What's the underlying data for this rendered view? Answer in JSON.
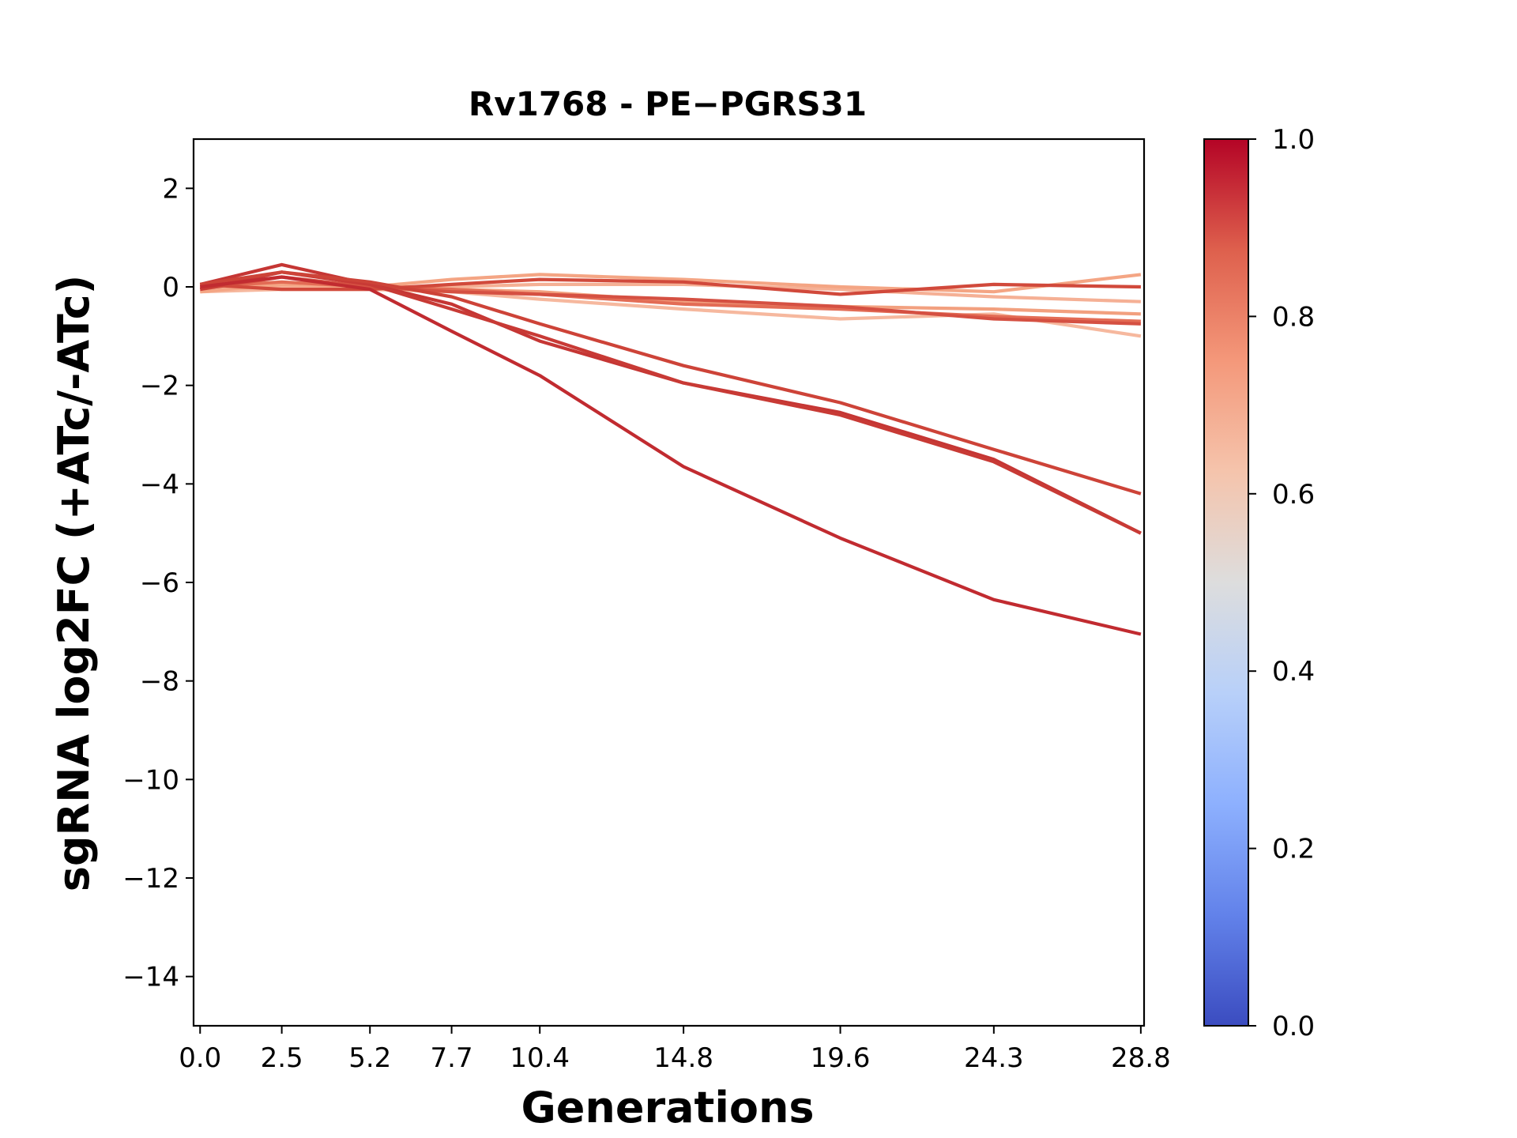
{
  "chart_data": {
    "type": "line",
    "title": "Rv1768 - PE−PGRS31",
    "xlabel": "Generations",
    "ylabel": "sgRNA log2FC (+ATc/-ATc)",
    "x": [
      0.0,
      2.5,
      5.2,
      7.7,
      10.4,
      14.8,
      19.6,
      24.3,
      28.8
    ],
    "x_tick_labels": [
      "0.0",
      "2.5",
      "5.2",
      "7.7",
      "10.4",
      "14.8",
      "19.6",
      "24.3",
      "28.8"
    ],
    "xlim": [
      -0.2,
      28.9
    ],
    "ylim": [
      -15,
      3
    ],
    "y_ticks": [
      2,
      0,
      -2,
      -4,
      -6,
      -8,
      -10,
      -12,
      -14
    ],
    "y_tick_labels": [
      "2",
      "0",
      "−2",
      "−4",
      "−6",
      "−8",
      "−10",
      "−12",
      "−14"
    ],
    "colorbar": {
      "range": [
        0.0,
        1.0
      ],
      "ticks": [
        1.0,
        0.8,
        0.6,
        0.4,
        0.2,
        0.0
      ],
      "tick_labels": [
        "1.0",
        "0.8",
        "0.6",
        "0.4",
        "0.2",
        "0.0"
      ],
      "colormap_stops": [
        "#3b4cc0",
        "#6282ea",
        "#8db0fe",
        "#b8d0f9",
        "#dddddd",
        "#f5c4ac",
        "#f4987a",
        "#de604d",
        "#b40426"
      ]
    },
    "series": [
      {
        "values": [
          0.0,
          0.2,
          -0.05,
          -0.9,
          -1.8,
          -3.65,
          -5.1,
          -6.35,
          -7.05
        ],
        "color": "#c12b30"
      },
      {
        "values": [
          0.05,
          0.3,
          0.1,
          -0.2,
          -0.75,
          -1.6,
          -2.35,
          -3.3,
          -4.2
        ],
        "color": "#cd4338"
      },
      {
        "values": [
          -0.05,
          0.3,
          0.05,
          -0.45,
          -1.0,
          -1.95,
          -2.6,
          -3.55,
          -5.0
        ],
        "color": "#c83a35"
      },
      {
        "values": [
          0.05,
          0.45,
          0.05,
          -0.35,
          -1.1,
          -1.95,
          -2.55,
          -3.5,
          -5.0
        ],
        "color": "#c53634"
      },
      {
        "values": [
          0.05,
          -0.05,
          -0.05,
          0.05,
          0.15,
          0.1,
          -0.15,
          0.05,
          0.0
        ],
        "color": "#d1493b"
      },
      {
        "values": [
          -0.05,
          0.2,
          0.0,
          -0.1,
          -0.15,
          -0.25,
          -0.4,
          -0.65,
          -0.75
        ],
        "color": "#d55042"
      },
      {
        "values": [
          0.0,
          0.1,
          0.0,
          -0.05,
          -0.15,
          -0.35,
          -0.45,
          -0.6,
          -0.7
        ],
        "color": "#e36c55"
      },
      {
        "values": [
          -0.1,
          0.05,
          0.0,
          0.15,
          0.25,
          0.15,
          0.0,
          -0.1,
          0.25
        ],
        "color": "#f4a584"
      },
      {
        "values": [
          0.0,
          0.0,
          0.0,
          0.0,
          0.05,
          0.05,
          -0.05,
          -0.2,
          -0.3
        ],
        "color": "#f5b095"
      },
      {
        "values": [
          -0.1,
          -0.05,
          -0.05,
          -0.1,
          -0.25,
          -0.45,
          -0.65,
          -0.55,
          -1.0
        ],
        "color": "#f6b89e"
      },
      {
        "values": [
          0.0,
          0.05,
          0.0,
          -0.05,
          -0.1,
          -0.3,
          -0.4,
          -0.45,
          -0.55
        ],
        "color": "#f2a07f"
      }
    ]
  }
}
